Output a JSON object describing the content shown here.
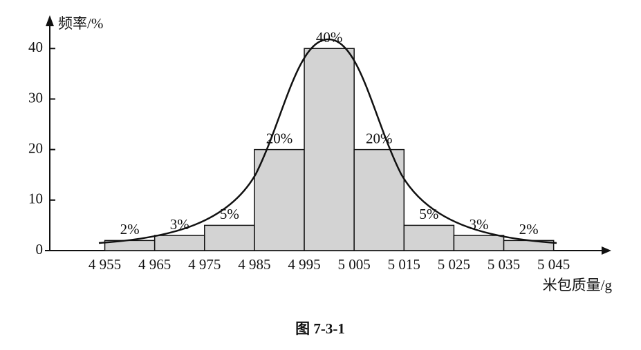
{
  "chart_data": {
    "type": "histogram",
    "y_label": "频率/%",
    "x_label": "米包质量/g",
    "caption": "图 7-3-1",
    "bins": [
      {
        "value": 4955,
        "label": "4 955"
      },
      {
        "value": 4965,
        "label": "4 965"
      },
      {
        "value": 4975,
        "label": "4 975"
      },
      {
        "value": 4985,
        "label": "4 985"
      },
      {
        "value": 4995,
        "label": "4 995"
      },
      {
        "value": 5005,
        "label": "5 005"
      },
      {
        "value": 5015,
        "label": "5 015"
      },
      {
        "value": 5025,
        "label": "5 025"
      },
      {
        "value": 5035,
        "label": "5 035"
      },
      {
        "value": 5045,
        "label": "5 045"
      }
    ],
    "values": [
      2,
      3,
      5,
      20,
      40,
      20,
      5,
      3,
      2
    ],
    "value_labels": [
      "2%",
      "3%",
      "5%",
      "20%",
      "40%",
      "20%",
      "5%",
      "3%",
      "2%"
    ],
    "color": "#d3d3d3",
    "xlim": [
      4943,
      5056
    ],
    "ylim": [
      0,
      45.5
    ],
    "yticks": [
      0,
      10,
      20,
      30,
      40
    ]
  }
}
